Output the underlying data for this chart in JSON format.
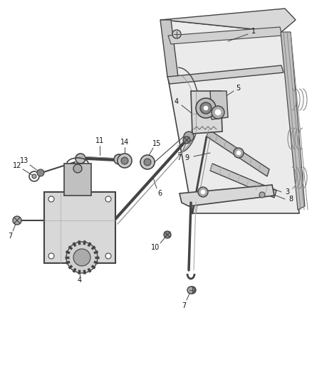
{
  "background_color": "#ffffff",
  "line_color": "#444444",
  "fig_width": 4.38,
  "fig_height": 5.33,
  "dpi": 100
}
